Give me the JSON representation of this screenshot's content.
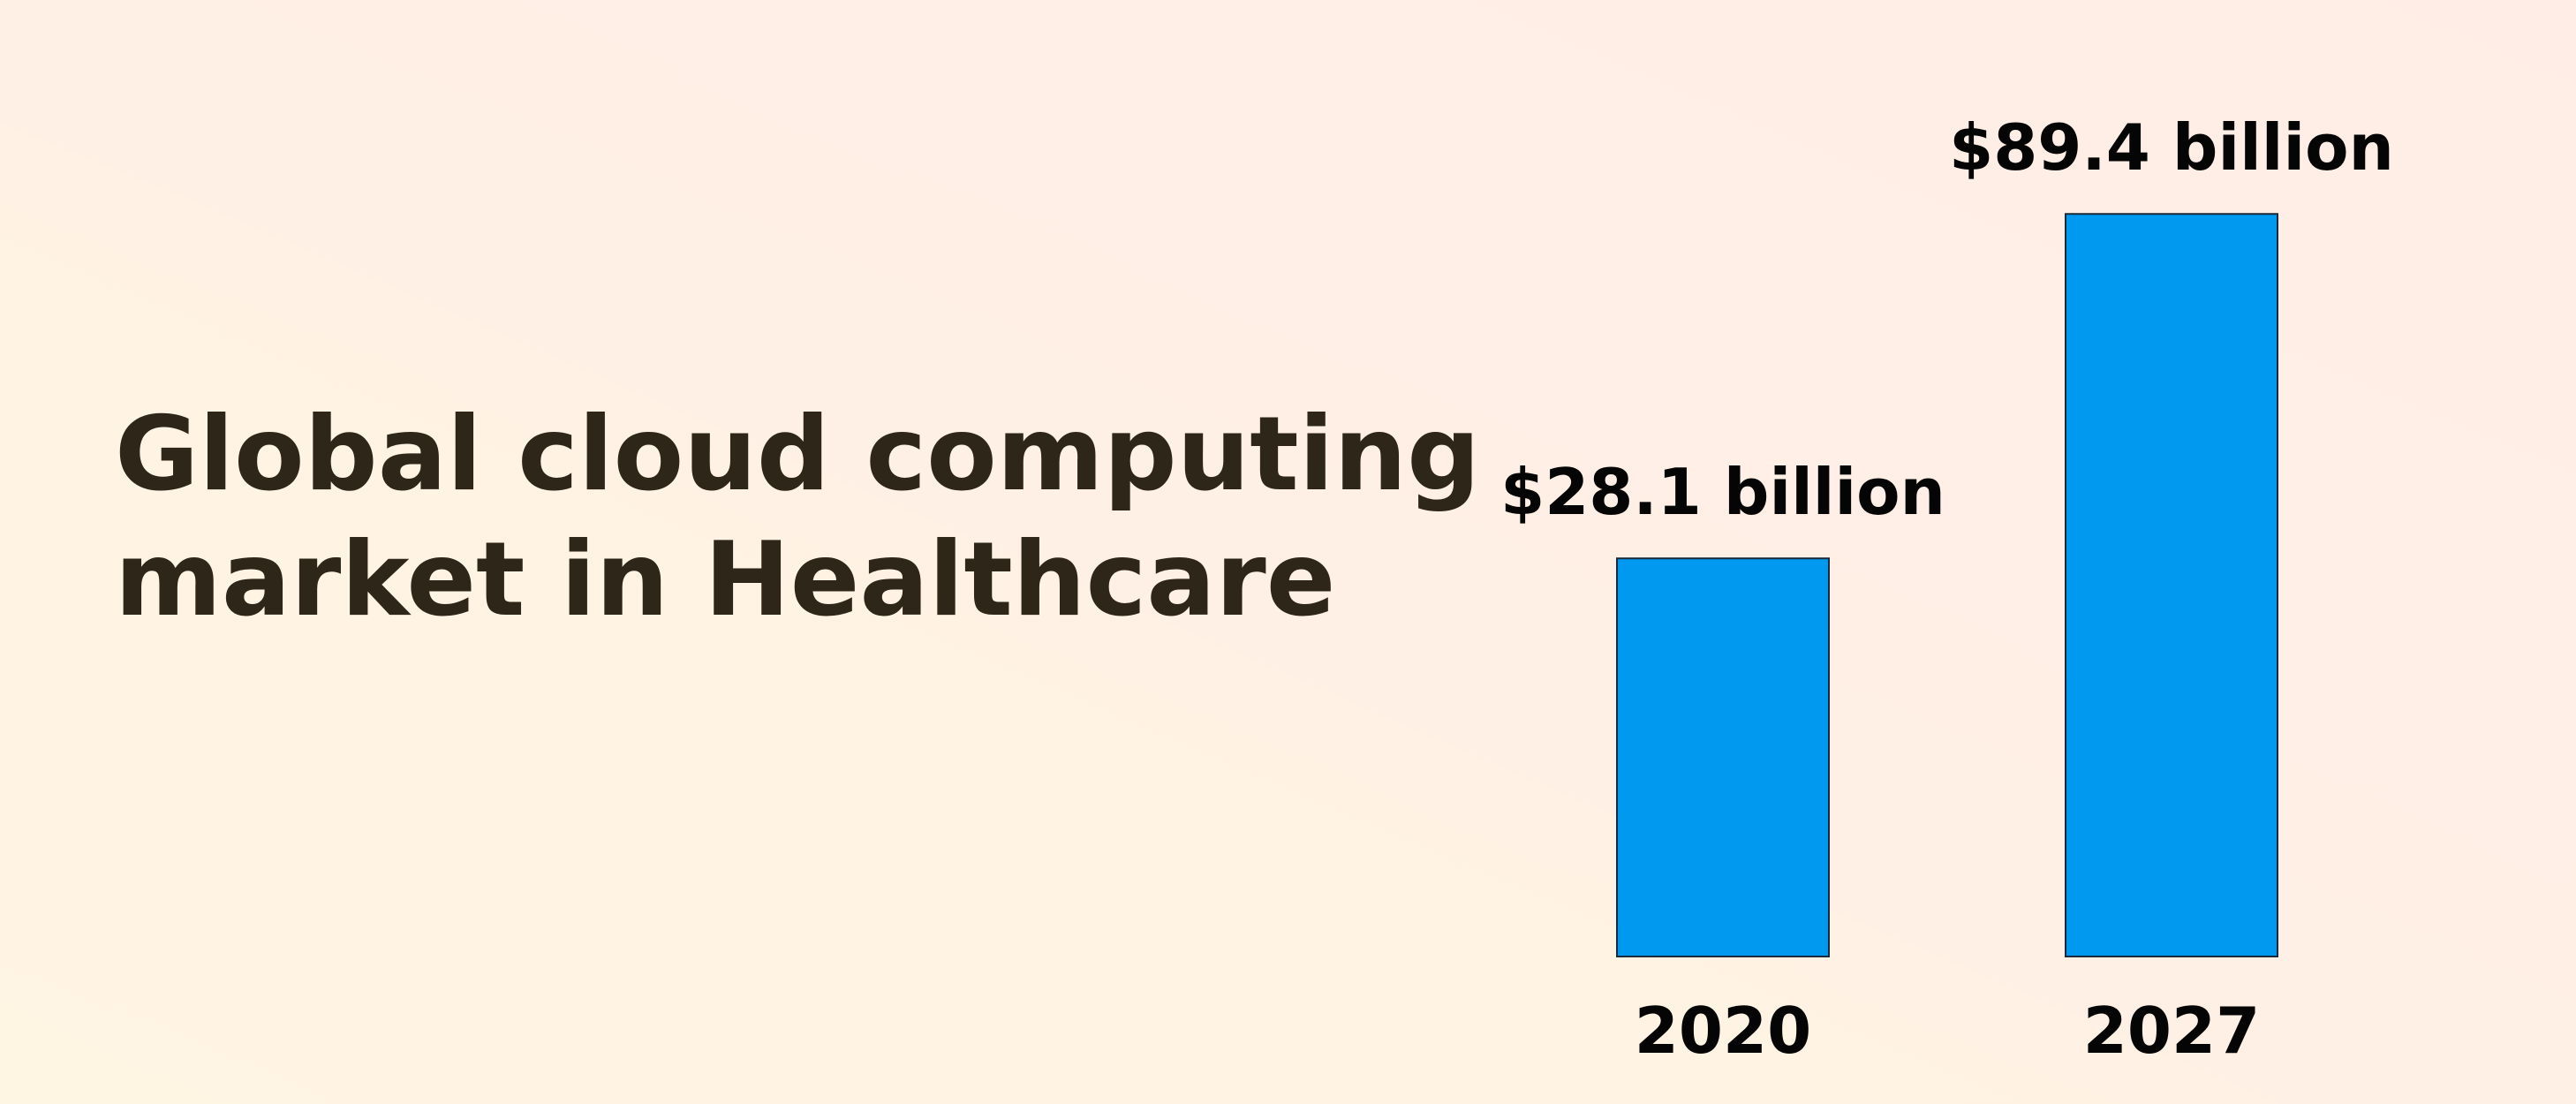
{
  "chart_data": {
    "type": "bar",
    "title": "Global cloud computing market in Healthcare",
    "title_lines": [
      "Global cloud computing",
      "market in Healthcare"
    ],
    "categories": [
      "2020",
      "2027"
    ],
    "values": [
      28.1,
      89.4
    ],
    "value_labels": [
      "$28.1 billion",
      "$89.4 billion"
    ],
    "unit": "USD billion",
    "xlabel": "",
    "ylabel": "",
    "grid": false,
    "bar_color": "#0099f0"
  }
}
